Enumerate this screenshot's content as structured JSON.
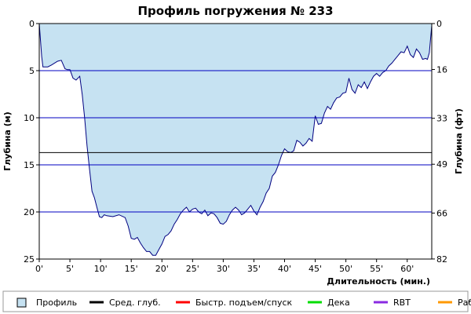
{
  "chart_data": {
    "type": "area",
    "title": "Профиль погружения № 233",
    "xlabel": "Длительность (мин.)",
    "ylabel_left": "Глубина (м)",
    "ylabel_right": "Глубина (фт)",
    "xlim": [
      0,
      64
    ],
    "ylim": [
      0,
      25
    ],
    "y_inverted": true,
    "grid": "horizontal",
    "x_ticks": [
      0,
      5,
      10,
      15,
      20,
      25,
      30,
      35,
      40,
      45,
      50,
      55,
      60
    ],
    "x_tick_labels": [
      "0'",
      "5'",
      "10'",
      "15'",
      "20'",
      "25'",
      "30'",
      "35'",
      "40'",
      "45'",
      "50'",
      "55'",
      "60'"
    ],
    "y_ticks": [
      0,
      5,
      10,
      15,
      20,
      25
    ],
    "y_tick_labels": [
      "0",
      "5",
      "10",
      "15",
      "20",
      "25"
    ],
    "right_ticks": [
      0,
      16,
      33,
      49,
      66,
      82
    ],
    "right_tick_labels": [
      "0",
      "16",
      "33",
      "49",
      "66",
      "82"
    ],
    "average_depth": 13.7,
    "colors": {
      "profile_fill": "#c6e2f2",
      "profile_line": "#000080",
      "grid": "#0000c0",
      "average": "#000000",
      "fast_ascent": "#ff0000",
      "deco": "#00dd00",
      "rbt": "#8a2be2",
      "work": "#ff9900"
    },
    "legend": [
      {
        "label": "Профиль",
        "kind": "box",
        "color": "#c6e2f2"
      },
      {
        "label": "Сред. глуб.",
        "kind": "line",
        "color": "#000000"
      },
      {
        "label": "Быстр. подъем/спуск",
        "kind": "line",
        "color": "#ff0000"
      },
      {
        "label": "Дека",
        "kind": "line",
        "color": "#00dd00"
      },
      {
        "label": "RBT",
        "kind": "line",
        "color": "#8a2be2"
      },
      {
        "label": "Раб.",
        "kind": "line",
        "color": "#ff9900"
      }
    ],
    "x": [
      0,
      0.2,
      0.4,
      0.6,
      1.0,
      1.4,
      2.0,
      3.0,
      3.6,
      4.2,
      4.6,
      5.0,
      5.5,
      6.0,
      6.6,
      7.0,
      7.4,
      7.8,
      8.2,
      8.6,
      9.0,
      9.4,
      9.8,
      10.2,
      10.6,
      11.0,
      12.0,
      13.0,
      14.0,
      14.5,
      15.0,
      15.5,
      16.0,
      16.5,
      17.0,
      17.5,
      18.0,
      18.5,
      19.0,
      19.5,
      20.0,
      20.5,
      21.0,
      21.5,
      22.0,
      22.5,
      23.0,
      23.5,
      24.0,
      24.5,
      25.0,
      25.5,
      26.0,
      26.5,
      27.0,
      27.5,
      28.0,
      28.5,
      29.0,
      29.5,
      30.0,
      30.5,
      31.0,
      31.5,
      32.0,
      32.5,
      33.0,
      33.5,
      34.0,
      34.5,
      35.0,
      35.5,
      36.0,
      36.5,
      37.0,
      37.5,
      38.0,
      38.5,
      39.0,
      39.5,
      40.0,
      40.5,
      41.0,
      41.5,
      42.0,
      42.5,
      43.0,
      43.5,
      44.0,
      44.5,
      45.0,
      45.5,
      46.0,
      46.5,
      47.0,
      47.5,
      48.0,
      48.5,
      49.0,
      49.5,
      50.0,
      50.5,
      51.0,
      51.5,
      52.0,
      52.5,
      53.0,
      53.5,
      54.0,
      54.5,
      55.0,
      55.5,
      56.0,
      56.5,
      57.0,
      57.5,
      58.0,
      58.5,
      59.0,
      59.5,
      60.0,
      60.5,
      61.0,
      61.5,
      62.0,
      62.5,
      63.0,
      63.3,
      63.6,
      64.0
    ],
    "depth": [
      0,
      1.8,
      3.5,
      4.6,
      4.6,
      4.6,
      4.4,
      4.0,
      3.9,
      4.8,
      4.9,
      4.9,
      5.8,
      6.0,
      5.6,
      7.5,
      10.0,
      13.0,
      15.5,
      17.8,
      18.5,
      19.5,
      20.5,
      20.6,
      20.3,
      20.4,
      20.5,
      20.3,
      20.6,
      21.5,
      22.8,
      22.9,
      22.7,
      23.3,
      23.8,
      24.2,
      24.2,
      24.6,
      24.6,
      24.0,
      23.4,
      22.6,
      22.4,
      22.0,
      21.3,
      20.8,
      20.2,
      19.8,
      19.5,
      20.0,
      19.7,
      19.6,
      20.0,
      20.2,
      19.8,
      20.4,
      20.1,
      20.2,
      20.6,
      21.2,
      21.3,
      21.0,
      20.3,
      19.8,
      19.5,
      19.8,
      20.3,
      20.1,
      19.7,
      19.3,
      19.9,
      20.3,
      19.5,
      18.9,
      18.0,
      17.5,
      16.2,
      15.8,
      15.0,
      14.0,
      13.3,
      13.6,
      13.7,
      13.5,
      12.4,
      12.6,
      13.0,
      12.7,
      12.2,
      12.5,
      9.8,
      10.7,
      10.6,
      9.5,
      8.8,
      9.1,
      8.4,
      7.9,
      7.8,
      7.4,
      7.3,
      5.8,
      7.0,
      7.4,
      6.5,
      6.8,
      6.2,
      6.9,
      6.2,
      5.6,
      5.3,
      5.6,
      5.2,
      5.0,
      4.5,
      4.2,
      3.8,
      3.4,
      3.0,
      3.1,
      2.4,
      3.3,
      3.6,
      2.7,
      3.1,
      3.8,
      3.7,
      3.8,
      3.1,
      0.2
    ]
  }
}
